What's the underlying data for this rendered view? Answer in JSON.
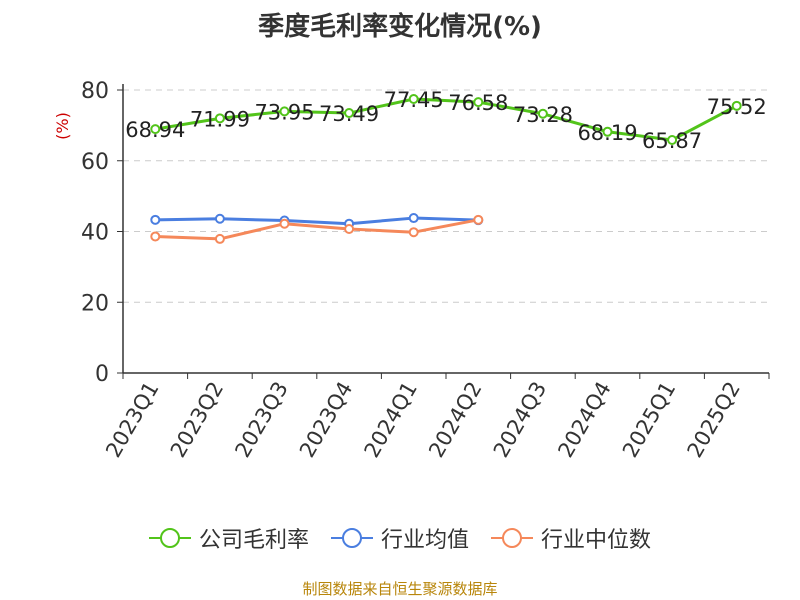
{
  "chart_data": {
    "type": "line",
    "title": "季度毛利率变化情况(%)",
    "ylabel": "(%)",
    "ylim": [
      0,
      80
    ],
    "yticks": [
      0,
      20,
      40,
      60,
      80
    ],
    "grid": true,
    "legend_position": "bottom",
    "categories": [
      "2023Q1",
      "2023Q2",
      "2023Q3",
      "2023Q4",
      "2024Q1",
      "2024Q2",
      "2024Q3",
      "2024Q4",
      "2025Q1",
      "2025Q2"
    ],
    "series": [
      {
        "name": "公司毛利率",
        "color": "#52c41a",
        "show_labels": true,
        "values": [
          68.94,
          71.99,
          73.95,
          73.49,
          77.45,
          76.58,
          73.28,
          68.19,
          65.87,
          75.52
        ]
      },
      {
        "name": "行业均值",
        "color": "#4a7ee0",
        "show_labels": false,
        "values": [
          43.3,
          43.6,
          43.1,
          42.2,
          43.8,
          43.2,
          null,
          null,
          null,
          null
        ]
      },
      {
        "name": "行业中位数",
        "color": "#f5885a",
        "show_labels": false,
        "values": [
          38.6,
          37.9,
          42.2,
          40.7,
          39.8,
          43.3,
          null,
          null,
          null,
          null
        ]
      }
    ]
  },
  "source": "制图数据来自恒生聚源数据库"
}
